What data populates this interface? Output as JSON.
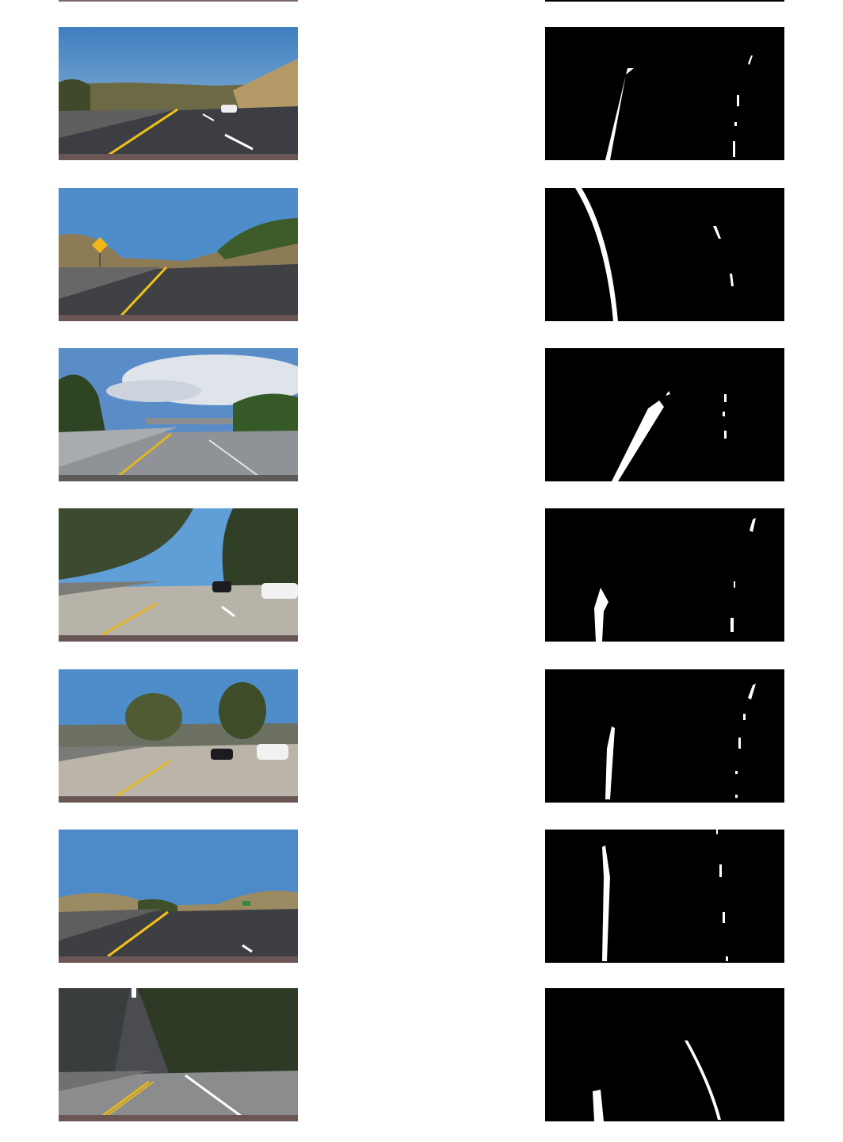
{
  "figure": {
    "background": "#ffffff",
    "rows": [
      {
        "scene": "highway-hill-right",
        "sky": "#5f93c6",
        "road": "#3c3e43",
        "ground": "#9a8a63"
      },
      {
        "scene": "curve-sign-left",
        "sky": "#4e8cca",
        "road": "#3f4144",
        "ground": "#8d7b56"
      },
      {
        "scene": "overpass-cloudy",
        "sky": "#5a8dc8",
        "road": "#8f9297",
        "ground": "#6b6e70"
      },
      {
        "scene": "trees-shadows-cars",
        "sky": "#5f9ed6",
        "road": "#b8b3a9",
        "ground": "#3c4a2f"
      },
      {
        "scene": "trees-cars-bright",
        "sky": "#4f8dca",
        "road": "#bbb4a8",
        "ground": "#4f5b33"
      },
      {
        "scene": "highway-sign",
        "sky": "#4d8bc8",
        "road": "#3d3f43",
        "ground": "#9b8b63"
      },
      {
        "scene": "dark-forest-road",
        "sky": "#4a4c4f",
        "road": "#8a8c8e",
        "ground": "#2f3a26"
      }
    ]
  },
  "colors": {
    "lane_yellow": "#f2c21a",
    "lane_white": "#ffffff",
    "binary_bg": "#000000"
  }
}
